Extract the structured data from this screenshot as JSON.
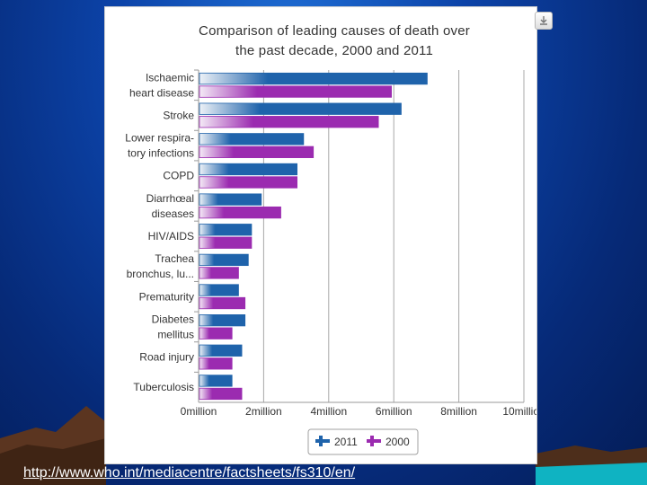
{
  "slide": {
    "source_url": "http://www.who.int/mediacentre/factsheets/fs310/en/"
  },
  "chart_data": {
    "type": "bar",
    "orientation": "horizontal",
    "title": "Comparison of leading causes of death over the past decade, 2000 and 2011",
    "title_lines": [
      "Comparison of leading causes of death over",
      "the past decade, 2000 and 2011"
    ],
    "categories": [
      [
        "Ischaemic",
        "heart disease"
      ],
      [
        "Stroke"
      ],
      [
        "Lower respira-",
        "tory infections"
      ],
      [
        "COPD"
      ],
      [
        "Diarrhœal",
        "diseases"
      ],
      [
        "HIV/AIDS"
      ],
      [
        "Trachea",
        "bronchus, lu..."
      ],
      [
        "Prematurity"
      ],
      [
        "Diabetes",
        "mellitus"
      ],
      [
        "Road injury"
      ],
      [
        "Tuberculosis"
      ]
    ],
    "series": [
      {
        "name": "2011",
        "values": [
          7.0,
          6.2,
          3.2,
          3.0,
          1.9,
          1.6,
          1.5,
          1.2,
          1.4,
          1.3,
          1.0
        ]
      },
      {
        "name": "2000",
        "values": [
          5.9,
          5.5,
          3.5,
          3.0,
          2.5,
          1.6,
          1.2,
          1.4,
          1.0,
          1.0,
          1.3
        ]
      }
    ],
    "x_ticks": [
      "0million",
      "2million",
      "4million",
      "6million",
      "8million",
      "10million"
    ],
    "xlim": [
      0,
      10
    ],
    "grid": "vertical",
    "legend_position": "bottom-center",
    "colors": {
      "2011": "#1f63ab",
      "2000": "#9b2bb0"
    }
  },
  "ui": {
    "export_icon": "download-arrow-icon"
  }
}
